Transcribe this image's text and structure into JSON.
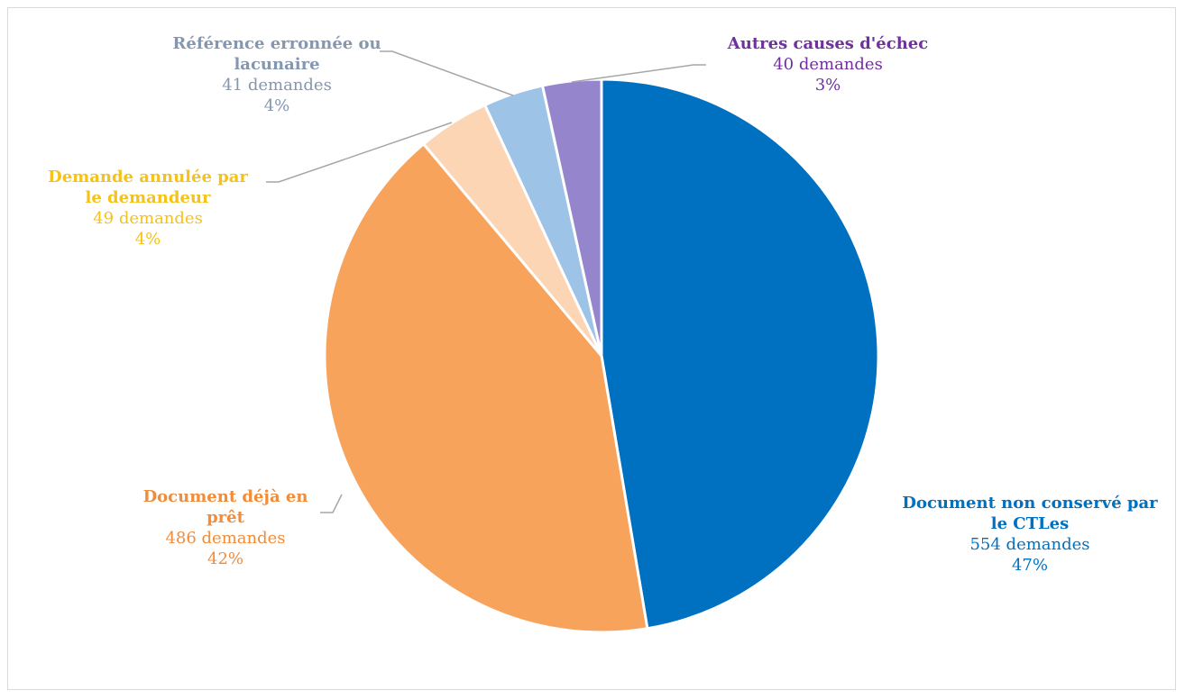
{
  "chart_data": {
    "type": "pie",
    "title": "",
    "start_angle_deg": 0,
    "direction": "clockwise",
    "unit": "demandes",
    "slices": [
      {
        "label": "Document non conservé par le CTLes",
        "label_lines": [
          "Document non conservé par",
          "le CTLes"
        ],
        "value": 554,
        "count_text": "554 demandes",
        "percent_text": "47%",
        "color": "#0070c0",
        "label_color": "#0070c0"
      },
      {
        "label": "Document déjà en prêt",
        "label_lines": [
          "Document déjà en",
          "prêt"
        ],
        "value": 486,
        "count_text": "486 demandes",
        "percent_text": "42%",
        "color": "#f7a35c",
        "label_color": "#f08c3a"
      },
      {
        "label": "Demande annulée par le demandeur",
        "label_lines": [
          "Demande annulée par",
          "le demandeur"
        ],
        "value": 49,
        "count_text": "49 demandes",
        "percent_text": "4%",
        "color": "#fcd5b5",
        "label_color": "#f5c218"
      },
      {
        "label": "Référence erronnée ou lacunaire",
        "label_lines": [
          "Référence erronnée ou",
          "lacunaire"
        ],
        "value": 41,
        "count_text": "41 demandes",
        "percent_text": "4%",
        "color": "#9dc3e6",
        "label_color": "#8497b0"
      },
      {
        "label": "Autres causes d'échec",
        "label_lines": [
          "Autres causes d'échec"
        ],
        "value": 40,
        "count_text": "40 demandes",
        "percent_text": "3%",
        "color": "#9585cc",
        "label_color": "#7030a0"
      }
    ],
    "legend": "none"
  }
}
